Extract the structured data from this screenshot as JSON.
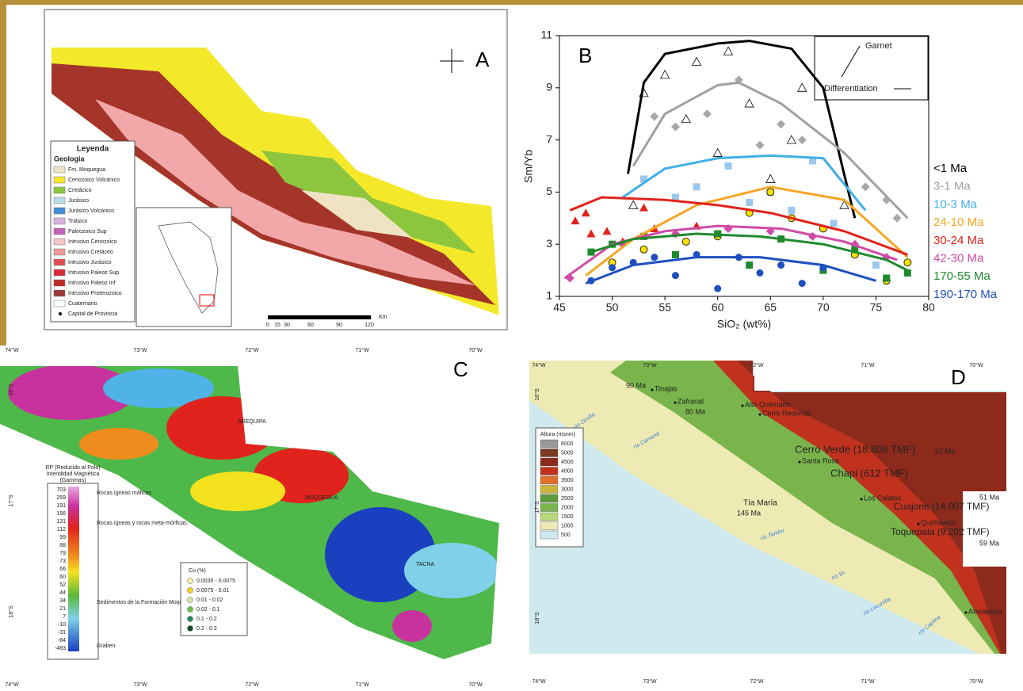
{
  "panel_a": {
    "label": "A",
    "legend_title": "Leyenda",
    "legend_subtitle": "Geologia",
    "legend_items": [
      {
        "label": "Fm. Moquegua",
        "color": "#efe3c4"
      },
      {
        "label": "Cenozoico Volcánico",
        "color": "#f3e92a"
      },
      {
        "label": "Cretácico",
        "color": "#8cc63f"
      },
      {
        "label": "Jurásico",
        "color": "#b7dde8"
      },
      {
        "label": "Jurásico Volcánico",
        "color": "#3f8fd2"
      },
      {
        "label": "Triásico",
        "color": "#d9b3e0"
      },
      {
        "label": "Paleozoico Sup",
        "color": "#c560b8"
      },
      {
        "label": "Intrusivo Cenozoico",
        "color": "#f6c6c6"
      },
      {
        "label": "Intrusivo Cretáceo",
        "color": "#ef9a9a"
      },
      {
        "label": "Intrusivo Jurásico",
        "color": "#e05050"
      },
      {
        "label": "Intrusivo Paleoz Sup",
        "color": "#d8283a"
      },
      {
        "label": "Intrusivo Paleoz Inf",
        "color": "#c02a2a"
      },
      {
        "label": "Intrusivo Proterozoico",
        "color": "#9c3a3a"
      },
      {
        "label": "Cuaternario",
        "color": "#ffffff"
      },
      {
        "label": "Capital de Provincia",
        "color": "#000000"
      }
    ],
    "scale_unit": "Km",
    "scale_ticks": [
      "0",
      "15",
      "30",
      "60",
      "90",
      "120"
    ]
  },
  "chart_data": {
    "type": "scatter",
    "label": "B",
    "ylabel": "Sm/Yb",
    "xlabel": "SiO₂ (wt%)",
    "xlim": [
      45,
      80
    ],
    "ylim": [
      1,
      11
    ],
    "xticks": [
      45,
      50,
      55,
      60,
      65,
      70,
      75,
      80
    ],
    "yticks": [
      1,
      3,
      5,
      7,
      9,
      11
    ],
    "annotations": [
      "Garnet",
      "Differentiation"
    ],
    "series": [
      {
        "name": "<1 Ma",
        "color": "#000000",
        "marker_color": "#ffffff",
        "marker": "triangle",
        "x": [
          52,
          53,
          55,
          57,
          58,
          60,
          61,
          63,
          65,
          67,
          68,
          72
        ],
        "values": [
          4.5,
          8.8,
          9.5,
          7.8,
          10,
          6.5,
          10.4,
          8.4,
          5.5,
          7,
          9,
          4.5
        ],
        "trend_x": [
          51.5,
          53,
          55,
          60,
          63,
          67,
          70,
          73
        ],
        "trend_y": [
          5.7,
          9.2,
          10.3,
          10.7,
          10.8,
          10.5,
          9,
          4
        ]
      },
      {
        "name": "3-1 Ma",
        "color": "#a0a0a0",
        "marker_color": "#a8a8a8",
        "marker": "diamond",
        "x": [
          54,
          56,
          59,
          62,
          64,
          66,
          68,
          74,
          76,
          77
        ],
        "values": [
          7.9,
          7.5,
          8,
          9.3,
          6.8,
          7.6,
          7,
          5.2,
          4.7,
          4
        ],
        "trend_x": [
          52,
          55,
          60,
          62,
          66,
          72,
          78
        ],
        "trend_y": [
          6,
          8,
          9.1,
          9.2,
          8.4,
          6.5,
          4
        ]
      },
      {
        "name": "10-3 Ma",
        "color": "#3fb0e6",
        "marker_color": "#9cc8ee",
        "marker": "square",
        "x": [
          53,
          56,
          58,
          61,
          63,
          65,
          67,
          69,
          71,
          75
        ],
        "values": [
          5.5,
          4.8,
          5.2,
          6,
          4.6,
          5,
          4.3,
          6.2,
          3.8,
          2.2
        ],
        "trend_x": [
          51,
          55,
          60,
          65,
          70,
          74
        ],
        "trend_y": [
          4.8,
          5.9,
          6.3,
          6.4,
          6.3,
          4.3
        ]
      },
      {
        "name": "24-10 Ma",
        "color": "#f5a623",
        "marker_color": "#f5e000",
        "marker": "circle",
        "x": [
          50,
          53,
          57,
          60,
          63,
          65,
          67,
          70,
          73,
          76,
          78
        ],
        "values": [
          2.3,
          2.8,
          3.1,
          3.3,
          4.2,
          5,
          4,
          3.6,
          2.6,
          1.6,
          2.3
        ],
        "trend_x": [
          47.5,
          52,
          58,
          65,
          72,
          78
        ],
        "trend_y": [
          1.8,
          3.2,
          4.5,
          5.2,
          4.7,
          2.5
        ]
      },
      {
        "name": "30-24 Ma",
        "color": "#e0231c",
        "marker_color": "#e0231c",
        "marker": "triangle",
        "x": [
          46.5,
          47.5,
          48,
          49.5,
          51,
          53,
          54,
          58
        ],
        "values": [
          3.9,
          4.2,
          3.4,
          3.5,
          3.1,
          4.4,
          3.6,
          3.7
        ],
        "trend_x": [
          46,
          49,
          55,
          60,
          65,
          72,
          78
        ],
        "trend_y": [
          4.3,
          4.8,
          4.7,
          4.5,
          4.2,
          3.5,
          2.6
        ]
      },
      {
        "name": "42-30 Ma",
        "color": "#d04aa6",
        "marker_color": "#d04aa6",
        "marker": "diamond",
        "x": [
          46,
          51,
          56,
          61,
          65,
          69,
          73,
          76
        ],
        "values": [
          1.7,
          3,
          3.4,
          3.6,
          3.5,
          3.3,
          3,
          2.5
        ],
        "trend_x": [
          45.5,
          50,
          55,
          60,
          66,
          72,
          77
        ],
        "trend_y": [
          1.7,
          3,
          3.5,
          3.7,
          3.6,
          3.1,
          2.4
        ]
      },
      {
        "name": "170-55 Ma",
        "color": "#1e8a2e",
        "marker_color": "#1e8a2e",
        "marker": "square",
        "x": [
          48,
          50,
          53,
          56,
          60,
          63,
          66,
          70,
          73,
          76,
          78
        ],
        "values": [
          2.7,
          3,
          3.3,
          2.6,
          3.4,
          2.2,
          3.2,
          2,
          2.8,
          1.7,
          1.9
        ],
        "trend_x": [
          48,
          52,
          58,
          64,
          70,
          76,
          78
        ],
        "trend_y": [
          2.7,
          3.2,
          3.4,
          3.3,
          3,
          2.4,
          2
        ]
      },
      {
        "name": "190-170 Ma",
        "color": "#1f4fbf",
        "marker_color": "#1f4fbf",
        "marker": "circle",
        "x": [
          48,
          50,
          52,
          54,
          56,
          58,
          60,
          62,
          64,
          66,
          68,
          70
        ],
        "values": [
          1.6,
          2.1,
          2.3,
          2.5,
          1.8,
          2.6,
          1.3,
          2.5,
          1.9,
          2.2,
          1.5,
          2.1
        ],
        "trend_x": [
          47.5,
          52,
          58,
          64,
          70,
          75
        ],
        "trend_y": [
          1.5,
          2.2,
          2.5,
          2.5,
          2.2,
          1.6
        ]
      }
    ]
  },
  "panel_c": {
    "label": "C",
    "lon_labels": [
      "74°W",
      "73°W",
      "72°W",
      "71°W",
      "70°W"
    ],
    "lat_labels": [
      "16°S",
      "17°S",
      "18°S"
    ],
    "title": "RP (Reducido al Polo)",
    "scale_title": "Intendidad Magnética",
    "scale_unit": "(Gammas)",
    "scale_labels": [
      "703",
      "259",
      "191",
      "156",
      "131",
      "112",
      "99",
      "88",
      "79",
      "73",
      "66",
      "60",
      "52",
      "44",
      "34",
      "21",
      "7",
      "-10",
      "-31",
      "-84",
      "-483"
    ],
    "notes": [
      "Rocas ígneas máficas.",
      "Rocas ígneas y rocas meta-mórficas.",
      "Sedimentos de la Formación Moquegua.",
      "Graben"
    ],
    "cities": [
      "AREQUIPA",
      "MOQUEGUA",
      "TACNA"
    ],
    "cu_title": "Cu (%)",
    "cu_items": [
      {
        "label": "0.0035 - 0.0075",
        "color": "#f6eea0"
      },
      {
        "label": "0.0075 - 0.01",
        "color": "#f5d21f"
      },
      {
        "label": "0.01 - 0.02",
        "color": "#d9e8a8"
      },
      {
        "label": "0.02 - 0.1",
        "color": "#6ec04a"
      },
      {
        "label": "0.1 - 0.2",
        "color": "#1f8a5a"
      },
      {
        "label": "0.2 - 0.3",
        "color": "#0f4a2a"
      }
    ]
  },
  "panel_d": {
    "label": "D",
    "lon_labels": [
      "74°W",
      "73°W",
      "72°W",
      "71°W",
      "70°W"
    ],
    "lat_labels": [
      "16°S",
      "17°S",
      "18°S"
    ],
    "legend_title": "Altura (msnm)",
    "legend_items": [
      {
        "label": "6000",
        "color": "#9a9a9a"
      },
      {
        "label": "5000",
        "color": "#7a3a22"
      },
      {
        "label": "4500",
        "color": "#8c2a1c"
      },
      {
        "label": "4000",
        "color": "#c0321e"
      },
      {
        "label": "3500",
        "color": "#e0702a"
      },
      {
        "label": "3000",
        "color": "#c9b63a"
      },
      {
        "label": "2500",
        "color": "#5c9a3a"
      },
      {
        "label": "2000",
        "color": "#79b54c"
      },
      {
        "label": "1500",
        "color": "#b8d77a"
      },
      {
        "label": "1000",
        "color": "#eeeab4"
      },
      {
        "label": "500",
        "color": "#cfe9ee"
      }
    ],
    "places": [
      "90 Ma",
      "Tinajas",
      "Zafranal",
      "80 Ma",
      "Alto Quemado",
      "Cerro Redondo",
      "Cerro Verde (18.806 TMF)",
      "62 Ma",
      "Santa Rosa",
      "Chapi (612 TMF)",
      "51 Ma",
      "Los Calatos",
      "Tía María",
      "145 Ma",
      "Cuajone (14.007 TMF)",
      "Quellaveco",
      "Toquepala (9.202 TMF)",
      "59 Ma",
      "Atasapaca"
    ],
    "rivers": [
      "río Ocoña",
      "río Camaná",
      "río Tambo",
      "río Ilo",
      "río Locumba",
      "río Caplina"
    ]
  }
}
